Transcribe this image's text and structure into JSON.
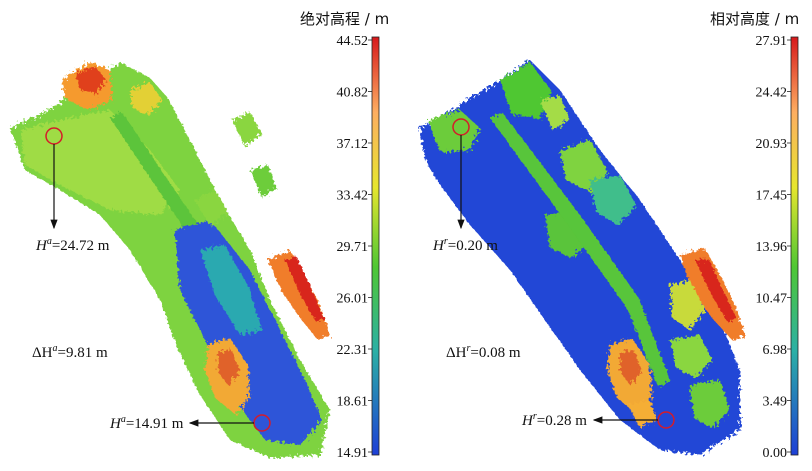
{
  "left_panel": {
    "colorbar_title": "绝对高程 / m",
    "ticks": [
      "44.52",
      "40.82",
      "37.12",
      "33.42",
      "29.71",
      "26.01",
      "22.31",
      "18.61",
      "14.91"
    ],
    "label_top_sym": "H",
    "label_top_sup": "a",
    "label_top_val": "=24.72 m",
    "label_delta_pre": "ΔH",
    "label_delta_sup": "a",
    "label_delta_val": "=9.81 m",
    "label_bottom_sym": "H",
    "label_bottom_sup": "a",
    "label_bottom_val": "=14.91 m"
  },
  "right_panel": {
    "colorbar_title": "相对高度 / m",
    "ticks": [
      "27.91",
      "24.42",
      "20.93",
      "17.45",
      "13.96",
      "10.47",
      "6.98",
      "3.49",
      "0.00"
    ],
    "label_top_sym": "H",
    "label_top_sup": "r",
    "label_top_val": "=0.20 m",
    "label_delta_pre": "ΔH",
    "label_delta_sup": "r",
    "label_delta_val": "=0.08 m",
    "label_bottom_sym": "H",
    "label_bottom_sup": "r",
    "label_bottom_val": "=0.28 m"
  },
  "colors": {
    "scale_top": "#d7191c",
    "scale_orange": "#fdae61",
    "scale_yellow": "#e6e62e",
    "scale_green": "#4fc733",
    "scale_cyan": "#2bb0a5",
    "scale_bottom": "#1e3fd6",
    "marker": "#d41c2a"
  }
}
